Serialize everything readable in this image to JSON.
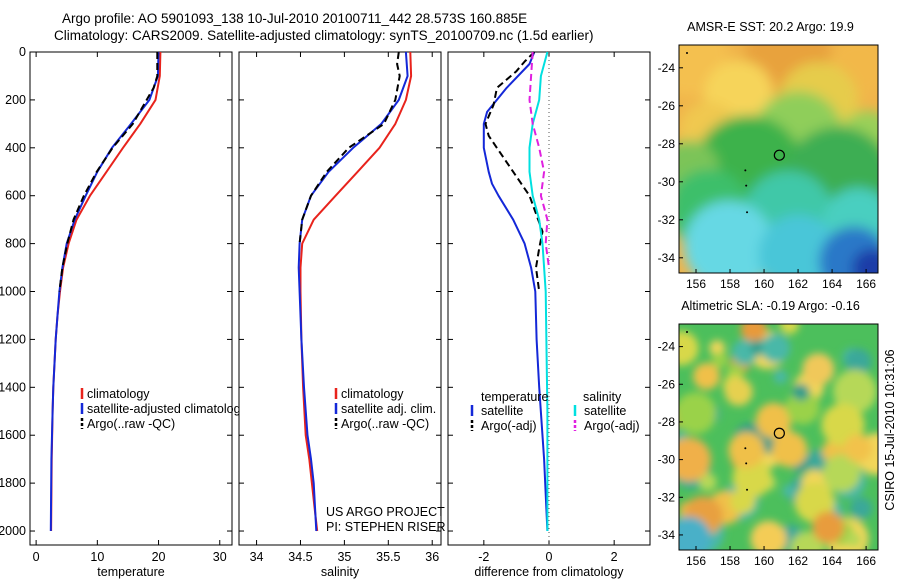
{
  "header": {
    "line1": "Argo profile: AO 5901093_138 10-Jul-2010 20100711_442 28.573S 160.885E",
    "line2": "Climatology: CARS2009. Satellite-adjusted climatology: synTS_20100709.nc (1.5d earlier)"
  },
  "chart_data": [
    {
      "type": "line",
      "panel": "temperature",
      "xlabel": "temperature",
      "xlim": [
        -1,
        32
      ],
      "ylim": [
        2050,
        0
      ],
      "xticks": [
        0,
        10,
        20,
        30
      ],
      "yticks": [
        0,
        200,
        400,
        600,
        800,
        1000,
        1200,
        1400,
        1600,
        1800,
        2000
      ],
      "legend": [
        "climatology",
        "satellite-adjusted climatology",
        "Argo(..raw -QC)"
      ],
      "series": [
        {
          "name": "climatology",
          "color": "#e8231c",
          "style": "solid",
          "x": [
            20.3,
            20.2,
            19.5,
            17,
            14.2,
            11.5,
            8.8,
            6.6,
            5.3,
            4.4,
            3.9,
            3.5,
            3.2,
            3.0,
            2.8,
            2.7,
            2.55,
            2.45
          ],
          "y": [
            0,
            100,
            200,
            300,
            400,
            500,
            600,
            700,
            800,
            900,
            1000,
            1100,
            1200,
            1300,
            1400,
            1500,
            1700,
            2000
          ]
        },
        {
          "name": "satellite-adjusted climatology",
          "color": "#1428d8",
          "style": "solid",
          "x": [
            20.0,
            19.9,
            18.5,
            15.5,
            12.4,
            10.0,
            8.1,
            6.3,
            5.0,
            4.3,
            3.8,
            3.5,
            3.2,
            3.0,
            2.8,
            2.7,
            2.5,
            2.4
          ],
          "y": [
            0,
            100,
            200,
            300,
            400,
            500,
            600,
            700,
            800,
            900,
            1000,
            1100,
            1200,
            1300,
            1400,
            1500,
            1700,
            2000
          ]
        },
        {
          "name": "Argo(..raw -QC)",
          "color": "#000000",
          "style": "dashed",
          "x": [
            19.8,
            19.8,
            19.2,
            15.8,
            12.5,
            9.9,
            7.8,
            6.1,
            5.1,
            4.3,
            3.8
          ],
          "y": [
            0,
            100,
            150,
            300,
            400,
            500,
            600,
            700,
            800,
            900,
            1000
          ]
        }
      ]
    },
    {
      "type": "line",
      "panel": "salinity",
      "xlabel": "salinity",
      "xlim": [
        33.8,
        36.1
      ],
      "ylim": [
        2050,
        0
      ],
      "xticks": [
        34,
        34.5,
        35,
        35.5,
        36
      ],
      "legend": [
        "climatology",
        "satellite adj. clim.",
        "Argo(..raw -QC)"
      ],
      "annotations": [
        "US ARGO PROJECT",
        "PI: STEPHEN RISER"
      ],
      "series": [
        {
          "name": "climatology",
          "color": "#e8231c",
          "style": "solid",
          "x": [
            35.75,
            35.76,
            35.7,
            35.58,
            35.4,
            35.15,
            34.9,
            34.65,
            34.52,
            34.5,
            34.5,
            34.51,
            34.53,
            34.56,
            34.6,
            34.63,
            34.66,
            34.69
          ],
          "y": [
            0,
            100,
            200,
            300,
            400,
            500,
            600,
            700,
            800,
            900,
            1000,
            1200,
            1400,
            1600,
            1700,
            1800,
            1900,
            2000
          ]
        },
        {
          "name": "satellite adj. clim.",
          "color": "#1428d8",
          "style": "solid",
          "x": [
            35.7,
            35.72,
            35.62,
            35.42,
            35.1,
            34.82,
            34.62,
            34.52,
            34.49,
            34.48,
            34.49,
            34.51,
            34.54,
            34.58,
            34.62,
            34.65,
            34.68
          ],
          "y": [
            0,
            100,
            200,
            300,
            400,
            500,
            600,
            700,
            800,
            900,
            1000,
            1200,
            1400,
            1600,
            1700,
            1800,
            2000
          ]
        },
        {
          "name": "Argo(..raw -QC)",
          "color": "#000000",
          "style": "dashed",
          "x": [
            35.62,
            35.6,
            35.63,
            35.58,
            35.45,
            35.05,
            34.8,
            34.62,
            34.52,
            34.49
          ],
          "y": [
            0,
            50,
            100,
            200,
            300,
            400,
            500,
            600,
            700,
            800
          ]
        }
      ]
    },
    {
      "type": "line",
      "panel": "difference",
      "xlabel": "difference from climatology",
      "xlim": [
        -3.1,
        3.1
      ],
      "ylim": [
        2050,
        0
      ],
      "xticks": [
        -2,
        0,
        2
      ],
      "legend_headers": [
        "temperature",
        "salinity"
      ],
      "legend": [
        "satellite",
        "Argo(-adj)",
        "satellite",
        "Argo(-adj)"
      ],
      "series": [
        {
          "name": "temperature satellite",
          "color": "#1428d8",
          "style": "solid",
          "x": [
            -0.45,
            -0.6,
            -1.3,
            -1.9,
            -2.0,
            -2.0,
            -1.85,
            -1.75,
            -1.55,
            -1.1,
            -0.75,
            -0.55,
            -0.42,
            -0.38,
            -0.3,
            -0.15,
            -0.05
          ],
          "y": [
            0,
            50,
            150,
            250,
            300,
            400,
            500,
            550,
            600,
            700,
            800,
            900,
            1000,
            1200,
            1400,
            1700,
            2000
          ]
        },
        {
          "name": "temperature Argo(-adj)",
          "color": "#000000",
          "style": "dashed",
          "x": [
            -0.45,
            -0.75,
            -1.0,
            -1.6,
            -1.7,
            -1.95,
            -1.85,
            -1.5,
            -1.1,
            -0.85,
            -0.6,
            -0.2,
            -0.3,
            -0.4,
            -0.3
          ],
          "y": [
            0,
            40,
            80,
            150,
            220,
            300,
            350,
            420,
            500,
            550,
            600,
            750,
            820,
            900,
            1000
          ]
        },
        {
          "name": "salinity satellite",
          "color": "#00e0e0",
          "style": "solid",
          "x": [
            -0.05,
            -0.25,
            -0.3,
            -0.5,
            -0.6,
            -0.6,
            -0.5,
            -0.3,
            -0.2,
            -0.1,
            -0.05,
            -0.05
          ],
          "y": [
            0,
            100,
            200,
            300,
            400,
            500,
            600,
            700,
            800,
            1000,
            1500,
            2000
          ]
        },
        {
          "name": "salinity Argo(-adj)",
          "color": "#e020e0",
          "style": "dashed",
          "x": [
            -0.5,
            -0.55,
            -0.6,
            -0.5,
            -0.3,
            -0.15,
            -0.25,
            -0.05,
            -0.1,
            0.0
          ],
          "y": [
            0,
            100,
            200,
            300,
            400,
            500,
            600,
            700,
            800,
            900
          ]
        }
      ]
    },
    {
      "type": "heatmap",
      "panel": "sst-map",
      "title": "AMSR-E SST: 20.2 Argo: 19.9",
      "xticks": [
        156,
        158,
        160,
        162,
        164,
        166
      ],
      "yticks": [
        -24,
        -26,
        -28,
        -30,
        -32,
        -34
      ],
      "xlim": [
        155,
        166.7
      ],
      "ylim": [
        -34.8,
        -22.8
      ],
      "float_position": [
        160.9,
        -28.6
      ]
    },
    {
      "type": "heatmap",
      "panel": "sla-map",
      "title": "Altimetric SLA: -0.19 Argo: -0.16",
      "xticks": [
        156,
        158,
        160,
        162,
        164,
        166
      ],
      "yticks": [
        -24,
        -26,
        -28,
        -30,
        -32,
        -34
      ],
      "xlim": [
        155,
        166.7
      ],
      "ylim": [
        -34.8,
        -22.8
      ],
      "float_position": [
        160.9,
        -28.6
      ]
    }
  ],
  "side_label": "CSIRO 15-Jul-2010 10:31:06"
}
